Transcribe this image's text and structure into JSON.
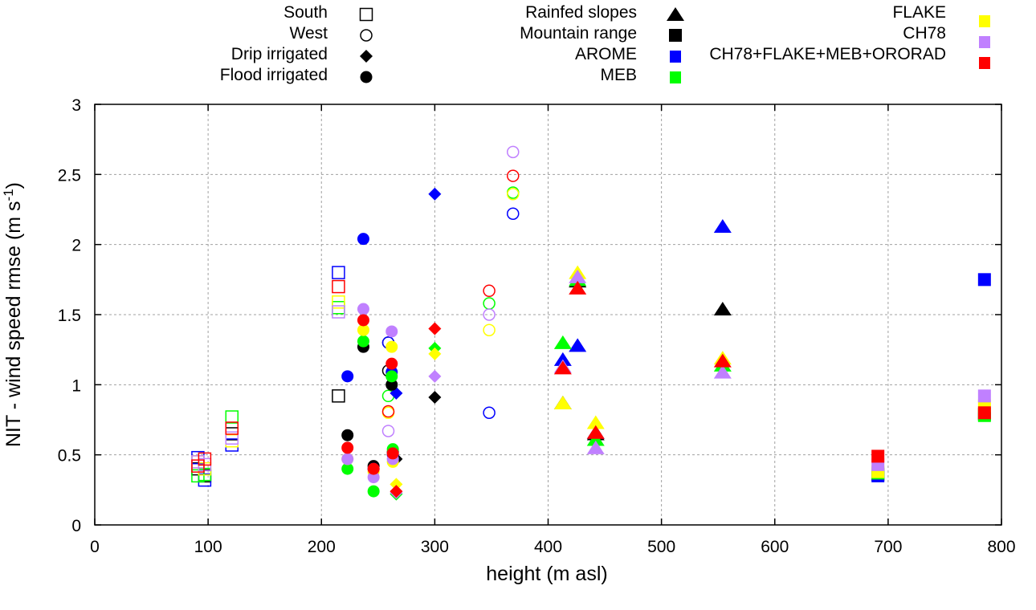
{
  "chart_data": {
    "type": "scatter",
    "title": "",
    "xlabel": "height (m asl)",
    "ylabel": "NIT - wind speed rmse (m s",
    "ylabel_superscript": "-1",
    "ylabel_suffix": ")",
    "xlim": [
      0,
      800
    ],
    "ylim": [
      0,
      3
    ],
    "xticks": [
      "0",
      "100",
      "200",
      "300",
      "400",
      "500",
      "600",
      "700",
      "800"
    ],
    "xtick_values": [
      0,
      100,
      200,
      300,
      400,
      500,
      600,
      700,
      800
    ],
    "yticks": [
      "0",
      "0.5",
      "1",
      "1.5",
      "2",
      "2.5",
      "3"
    ],
    "ytick_values": [
      0,
      0.5,
      1,
      1.5,
      2,
      2.5,
      3
    ],
    "grid": true,
    "legend_placement": "top",
    "legend_shapes": [
      {
        "label": "South",
        "shape": "open-square"
      },
      {
        "label": "West",
        "shape": "open-circle"
      },
      {
        "label": "Drip irrigated",
        "shape": "diamond"
      },
      {
        "label": "Flood irrigated",
        "shape": "circle"
      },
      {
        "label": "Rainfed slopes",
        "shape": "triangle"
      },
      {
        "label": "Mountain range",
        "shape": "square"
      }
    ],
    "legend_models": [
      {
        "label": "AROME",
        "color": "#0000ff"
      },
      {
        "label": "MEB",
        "color": "#00ff00"
      },
      {
        "label": "FLAKE",
        "color": "#ffff00"
      },
      {
        "label": "CH78",
        "color": "#c080ff"
      },
      {
        "label": "CH78+FLAKE+MEB+ORORAD",
        "color": "#ff0000"
      }
    ],
    "obs_color": "#000000",
    "series": [
      {
        "name": "South - OBS",
        "shape": "open-square",
        "color": "#000000",
        "x": [
          91,
          97,
          121,
          215
        ],
        "y": [
          0.4,
          0.35,
          0.65,
          0.92
        ]
      },
      {
        "name": "South - AROME",
        "shape": "open-square",
        "color": "#0000ff",
        "x": [
          91,
          97,
          121,
          215
        ],
        "y": [
          0.48,
          0.32,
          0.57,
          1.8
        ]
      },
      {
        "name": "South - MEB",
        "shape": "open-square",
        "color": "#00ff00",
        "x": [
          91,
          97,
          121,
          215
        ],
        "y": [
          0.35,
          0.36,
          0.77,
          1.55
        ]
      },
      {
        "name": "South - FLAKE",
        "shape": "open-square",
        "color": "#ffff00",
        "x": [
          91,
          97,
          121,
          215
        ],
        "y": [
          0.45,
          0.4,
          0.6,
          1.59
        ]
      },
      {
        "name": "South - CH78",
        "shape": "open-square",
        "color": "#c080ff",
        "x": [
          91,
          97,
          121,
          215
        ],
        "y": [
          0.45,
          0.43,
          0.62,
          1.52
        ]
      },
      {
        "name": "South - ARCOMB",
        "shape": "open-square",
        "color": "#ff0000",
        "x": [
          91,
          97,
          121,
          215
        ],
        "y": [
          0.42,
          0.47,
          0.69,
          1.7
        ]
      },
      {
        "name": "West - OBS",
        "shape": "open-circle",
        "color": "#000000",
        "x": [
          259,
          259
        ],
        "y": [
          1.3,
          1.1
        ]
      },
      {
        "name": "West - AROME",
        "shape": "open-circle",
        "color": "#0000ff",
        "x": [
          259,
          348,
          369
        ],
        "y": [
          1.3,
          0.8,
          2.22
        ]
      },
      {
        "name": "West - MEB",
        "shape": "open-circle",
        "color": "#00ff00",
        "x": [
          259,
          348,
          369
        ],
        "y": [
          0.92,
          1.58,
          2.37
        ]
      },
      {
        "name": "West - FLAKE",
        "shape": "open-circle",
        "color": "#ffff00",
        "x": [
          259,
          348,
          369
        ],
        "y": [
          0.8,
          1.39,
          2.36
        ]
      },
      {
        "name": "West - CH78",
        "shape": "open-circle",
        "color": "#c080ff",
        "x": [
          259,
          348,
          369
        ],
        "y": [
          0.67,
          1.5,
          2.66
        ]
      },
      {
        "name": "West - ARCOMB",
        "shape": "open-circle",
        "color": "#ff0000",
        "x": [
          259,
          348,
          369
        ],
        "y": [
          0.81,
          1.67,
          2.49
        ]
      },
      {
        "name": "Drip - OBS",
        "shape": "diamond",
        "color": "#000000",
        "x": [
          266,
          300
        ],
        "y": [
          0.47,
          0.91
        ]
      },
      {
        "name": "Drip - AROME",
        "shape": "diamond",
        "color": "#0000ff",
        "x": [
          266,
          300
        ],
        "y": [
          0.94,
          2.36
        ]
      },
      {
        "name": "Drip - MEB",
        "shape": "diamond",
        "color": "#00ff00",
        "x": [
          266,
          300
        ],
        "y": [
          0.22,
          1.26
        ]
      },
      {
        "name": "Drip - FLAKE",
        "shape": "diamond",
        "color": "#ffff00",
        "x": [
          266,
          300
        ],
        "y": [
          0.29,
          1.22
        ]
      },
      {
        "name": "Drip - CH78",
        "shape": "diamond",
        "color": "#c080ff",
        "x": [
          266,
          300
        ],
        "y": [
          0.23,
          1.06
        ]
      },
      {
        "name": "Drip - ARCOMB",
        "shape": "diamond",
        "color": "#ff0000",
        "x": [
          266,
          300
        ],
        "y": [
          0.24,
          1.4
        ]
      },
      {
        "name": "Flood - OBS",
        "shape": "circle",
        "color": "#000000",
        "x": [
          223,
          237,
          246,
          262,
          263
        ],
        "y": [
          0.64,
          1.27,
          0.42,
          1.0,
          0.52
        ]
      },
      {
        "name": "Flood - AROME",
        "shape": "circle",
        "color": "#0000ff",
        "x": [
          223,
          237,
          246,
          262,
          263
        ],
        "y": [
          1.06,
          2.04,
          0.4,
          1.09,
          0.5
        ]
      },
      {
        "name": "Flood - MEB",
        "shape": "circle",
        "color": "#00ff00",
        "x": [
          223,
          237,
          246,
          262,
          263
        ],
        "y": [
          0.4,
          1.31,
          0.24,
          1.06,
          0.54
        ]
      },
      {
        "name": "Flood - FLAKE",
        "shape": "circle",
        "color": "#ffff00",
        "x": [
          223,
          237,
          246,
          262,
          263
        ],
        "y": [
          0.47,
          1.39,
          0.38,
          1.27,
          0.45
        ]
      },
      {
        "name": "Flood - CH78",
        "shape": "circle",
        "color": "#c080ff",
        "x": [
          223,
          237,
          246,
          262,
          263
        ],
        "y": [
          0.47,
          1.54,
          0.34,
          1.38,
          0.47
        ]
      },
      {
        "name": "Flood - ARCOMB",
        "shape": "circle",
        "color": "#ff0000",
        "x": [
          223,
          237,
          246,
          262,
          263
        ],
        "y": [
          0.55,
          1.46,
          0.4,
          1.15,
          0.51
        ]
      },
      {
        "name": "Rainfed - OBS",
        "shape": "triangle",
        "color": "#000000",
        "x": [
          413,
          426,
          442,
          554
        ],
        "y": [
          0.87,
          1.74,
          0.65,
          1.54
        ]
      },
      {
        "name": "Rainfed - AROME",
        "shape": "triangle",
        "color": "#0000ff",
        "x": [
          413,
          426,
          442,
          554
        ],
        "y": [
          1.18,
          1.28,
          0.66,
          2.13
        ]
      },
      {
        "name": "Rainfed - MEB",
        "shape": "triangle",
        "color": "#00ff00",
        "x": [
          413,
          426,
          442,
          554
        ],
        "y": [
          1.3,
          1.75,
          0.61,
          1.14
        ]
      },
      {
        "name": "Rainfed - FLAKE",
        "shape": "triangle",
        "color": "#ffff00",
        "x": [
          413,
          426,
          442,
          554
        ],
        "y": [
          0.87,
          1.8,
          0.73,
          1.19
        ]
      },
      {
        "name": "Rainfed - CH78",
        "shape": "triangle",
        "color": "#c080ff",
        "x": [
          413,
          426,
          442,
          554
        ],
        "y": [
          1.13,
          1.77,
          0.55,
          1.09
        ]
      },
      {
        "name": "Rainfed - ARCOMB",
        "shape": "triangle",
        "color": "#ff0000",
        "x": [
          413,
          426,
          442,
          554
        ],
        "y": [
          1.12,
          1.69,
          0.66,
          1.17
        ]
      },
      {
        "name": "Mountain - OBS",
        "shape": "square",
        "color": "#000000",
        "x": [
          691,
          785
        ],
        "y": [
          0.36,
          0.79
        ]
      },
      {
        "name": "Mountain - AROME",
        "shape": "square",
        "color": "#0000ff",
        "x": [
          691,
          785
        ],
        "y": [
          0.35,
          1.75
        ]
      },
      {
        "name": "Mountain - MEB",
        "shape": "square",
        "color": "#00ff00",
        "x": [
          691,
          785
        ],
        "y": [
          0.37,
          0.78
        ]
      },
      {
        "name": "Mountain - FLAKE",
        "shape": "square",
        "color": "#ffff00",
        "x": [
          691,
          785
        ],
        "y": [
          0.38,
          0.85
        ]
      },
      {
        "name": "Mountain - CH78",
        "shape": "square",
        "color": "#c080ff",
        "x": [
          691,
          785
        ],
        "y": [
          0.43,
          0.92
        ]
      },
      {
        "name": "Mountain - ARCOMB",
        "shape": "square",
        "color": "#ff0000",
        "x": [
          691,
          785
        ],
        "y": [
          0.49,
          0.8
        ]
      }
    ]
  }
}
